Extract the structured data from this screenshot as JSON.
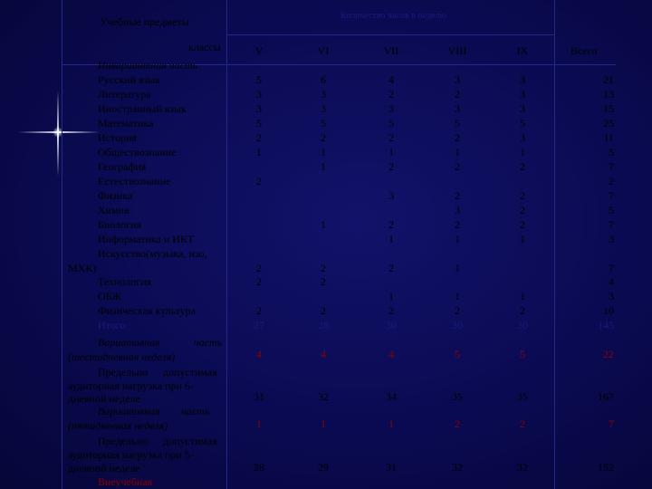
{
  "header": {
    "subjects_title": "Учебные предметы",
    "classes_label": "классы",
    "hours_title": "Количество часов в неделю",
    "columns": [
      "V",
      "VI",
      "VII",
      "VIII",
      "IX",
      "Всего"
    ]
  },
  "rows": [
    {
      "name": "Инвариантная часть",
      "values": [
        "",
        "",
        "",
        "",
        "",
        ""
      ]
    },
    {
      "name": "Русский язык",
      "values": [
        "5",
        "6",
        "4",
        "3",
        "3",
        "21"
      ]
    },
    {
      "name": "Литература",
      "values": [
        "3",
        "3",
        "2",
        "2",
        "3",
        "13"
      ]
    },
    {
      "name": "Иностранный язык",
      "values": [
        "3",
        "3",
        "3",
        "3",
        "3",
        "15"
      ]
    },
    {
      "name": "Математика",
      "values": [
        "5",
        "5",
        "5",
        "5",
        "5",
        "25"
      ]
    },
    {
      "name": "История",
      "values": [
        "2",
        "2",
        "2",
        "2",
        "3",
        "11"
      ]
    },
    {
      "name": "Обществознание",
      "values": [
        "1",
        "1",
        "1",
        "1",
        "1",
        "5"
      ]
    },
    {
      "name": "География",
      "values": [
        "",
        "1",
        "2",
        "2",
        "2",
        "7"
      ]
    },
    {
      "name": "Естествознание",
      "values": [
        "2",
        "",
        "",
        "",
        "",
        "2"
      ]
    },
    {
      "name": "Физика",
      "values": [
        "",
        "",
        "3",
        "2",
        "2",
        "7"
      ]
    },
    {
      "name": "Химия",
      "values": [
        "",
        "",
        "",
        "3",
        "2",
        "5"
      ]
    },
    {
      "name": "Биология",
      "values": [
        "",
        "1",
        "2",
        "2",
        "2",
        "7"
      ]
    },
    {
      "name": "Информатика и ИКТ",
      "values": [
        "",
        "",
        "1",
        "1",
        "1",
        "3"
      ]
    }
  ],
  "art_row": {
    "name_a": "Искусство(музыка, изо,",
    "name_b": "МХК)",
    "values": [
      "2",
      "2",
      "2",
      "1",
      "",
      "7"
    ]
  },
  "rows2": [
    {
      "name": "Технология",
      "values": [
        "2",
        "2",
        "",
        "",
        "",
        "4"
      ]
    },
    {
      "name": "ОБЖ",
      "values": [
        "",
        "",
        "1",
        "1",
        "1",
        "3"
      ]
    },
    {
      "name": "Физическая культура",
      "values": [
        "2",
        "2",
        "2",
        "2",
        "2",
        "10"
      ]
    },
    {
      "name": "Итого",
      "values": [
        "27",
        "28",
        "30",
        "30",
        "30",
        "145"
      ]
    }
  ],
  "variative6": {
    "line1a": "Вариативная",
    "line1b": "часть",
    "line2": "(шестидневная неделя)",
    "values": [
      "4",
      "4",
      "4",
      "5",
      "5",
      "22"
    ]
  },
  "max6": {
    "line1a": "Предельно",
    "line1b": "допустимая",
    "line2": "аудиторная нагрузка при 6-",
    "line3": "дневной неделе",
    "values": [
      "31",
      "32",
      "34",
      "35",
      "35",
      "167"
    ]
  },
  "variative5": {
    "line1a": "Вариативная",
    "line1b": "часть",
    "line2": "(пятидневная неделя)",
    "values": [
      "1",
      "1",
      "1",
      "2",
      "2",
      "7"
    ]
  },
  "max5": {
    "line1a": "Предельно",
    "line1b": "допустимая",
    "line2": "аудиторная нагрузка при 5-",
    "line3": "дневной неделе",
    "values": [
      "28",
      "29",
      "31",
      "32",
      "32",
      "152"
    ]
  },
  "last_row": {
    "name": "Внеучебная"
  },
  "colors": {
    "background": "#0a0a52",
    "accent_red": "#8a0000",
    "grid": "#25258a"
  }
}
